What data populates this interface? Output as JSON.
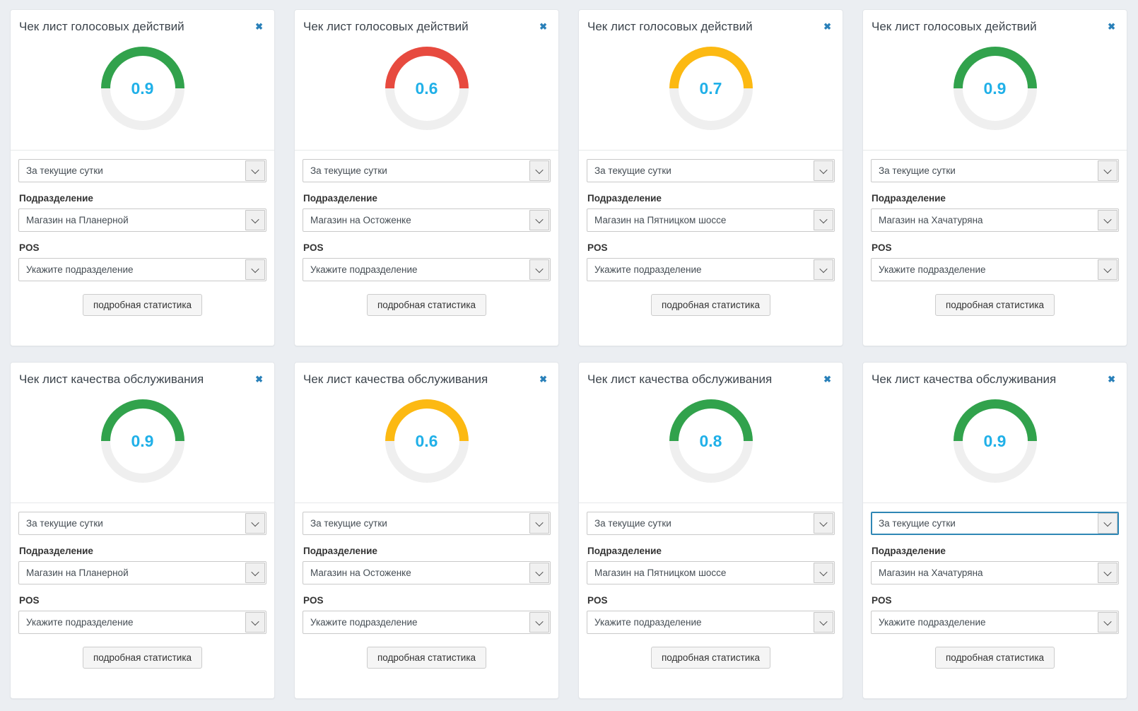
{
  "shared": {
    "period_value": "За текущие сутки",
    "division_label": "Подразделение",
    "pos_label": "POS",
    "pos_placeholder": "Укажите подразделение",
    "details_button_label": "подробная статистика",
    "close_glyph": "✖"
  },
  "colors": {
    "green": "#31a24c",
    "red": "#e74a3f",
    "yellow": "#fcb912",
    "gauge_track": "#efefef",
    "value_text": "#20b0e8",
    "close_icon": "#2980b9",
    "focus_border": "#2f87b5",
    "page_background": "#ebeef2"
  },
  "cards": [
    {
      "title": "Чек лист голосовых действий",
      "value": "0.9",
      "gauge_color": "green",
      "division": "Магазин на Планерной",
      "period_focused": false
    },
    {
      "title": "Чек лист голосовых действий",
      "value": "0.6",
      "gauge_color": "red",
      "division": "Магазин на Остоженке",
      "period_focused": false
    },
    {
      "title": "Чек лист голосовых действий",
      "value": "0.7",
      "gauge_color": "yellow",
      "division": "Магазин на Пятницком шоссе",
      "period_focused": false
    },
    {
      "title": "Чек лист голосовых действий",
      "value": "0.9",
      "gauge_color": "green",
      "division": "Магазин на Хачатуряна",
      "period_focused": false
    },
    {
      "title": "Чек лист качества обслуживания",
      "value": "0.9",
      "gauge_color": "green",
      "division": "Магазин на Планерной",
      "period_focused": false
    },
    {
      "title": "Чек лист качества обслуживания",
      "value": "0.6",
      "gauge_color": "yellow",
      "division": "Магазин на Остоженке",
      "period_focused": false
    },
    {
      "title": "Чек лист качества обслуживания",
      "value": "0.8",
      "gauge_color": "green",
      "division": "Магазин на Пятницком шоссе",
      "period_focused": false
    },
    {
      "title": "Чек лист качества обслуживания",
      "value": "0.9",
      "gauge_color": "green",
      "division": "Магазин на Хачатуряна",
      "period_focused": true
    }
  ]
}
